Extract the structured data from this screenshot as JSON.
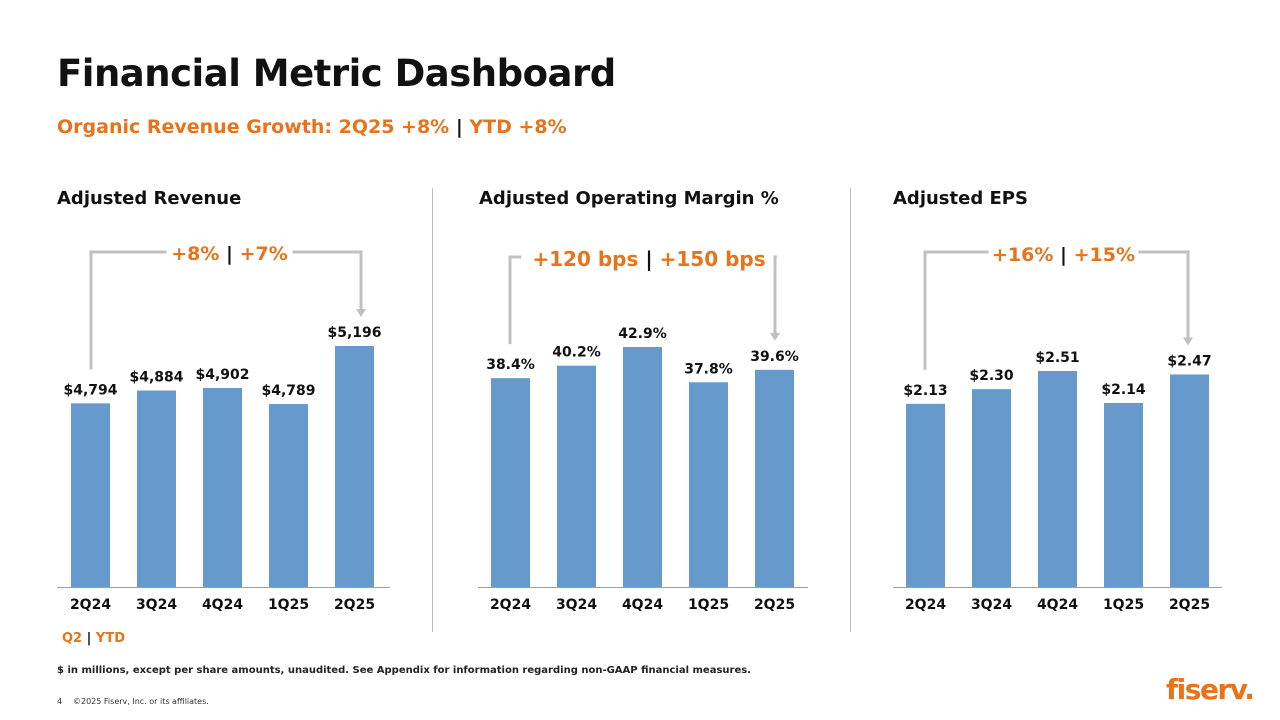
{
  "title": "Financial Metric Dashboard",
  "subtitle": {
    "q2": "Organic Revenue Growth: 2Q25 +8%",
    "sep": "|",
    "ytd": "YTD +8%"
  },
  "colors": {
    "accent": "#e8731a",
    "bar": "#6699cc",
    "bracket": "#c0c0c0",
    "axis": "#9e9e9e"
  },
  "chart_data": [
    {
      "type": "bar",
      "title": "Adjusted Revenue",
      "categories": [
        "2Q24",
        "3Q24",
        "4Q24",
        "1Q25",
        "2Q25"
      ],
      "values": [
        4794,
        4884,
        4902,
        4789,
        5196
      ],
      "labels": [
        "$4,794",
        "$4,884",
        "$4,902",
        "$4,789",
        "$5,196"
      ],
      "growth": {
        "q2": "+8%",
        "sep": "|",
        "ytd": "+7%"
      }
    },
    {
      "type": "bar",
      "title": "Adjusted Operating Margin %",
      "categories": [
        "2Q24",
        "3Q24",
        "4Q24",
        "1Q25",
        "2Q25"
      ],
      "values": [
        38.4,
        40.2,
        42.9,
        37.8,
        39.6
      ],
      "labels": [
        "38.4%",
        "40.2%",
        "42.9%",
        "37.8%",
        "39.6%"
      ],
      "growth": {
        "q2": "+120 bps",
        "sep": "|",
        "ytd": "+150 bps"
      }
    },
    {
      "type": "bar",
      "title": "Adjusted EPS",
      "categories": [
        "2Q24",
        "3Q24",
        "4Q24",
        "1Q25",
        "2Q25"
      ],
      "values": [
        2.13,
        2.3,
        2.51,
        2.14,
        2.47
      ],
      "labels": [
        "$2.13",
        "$2.30",
        "$2.51",
        "$2.14",
        "$2.47"
      ],
      "growth": {
        "q2": "+16%",
        "sep": "|",
        "ytd": "+15%"
      }
    }
  ],
  "legend": {
    "q2": "Q2",
    "sep": "|",
    "ytd": "YTD"
  },
  "footnote": "$ in millions, except per share amounts, unaudited. See Appendix for information regarding non-GAAP financial measures.",
  "page_number": "4",
  "copyright": "©2025 Fiserv, Inc. or its affiliates.",
  "logo_text": "fiserv."
}
